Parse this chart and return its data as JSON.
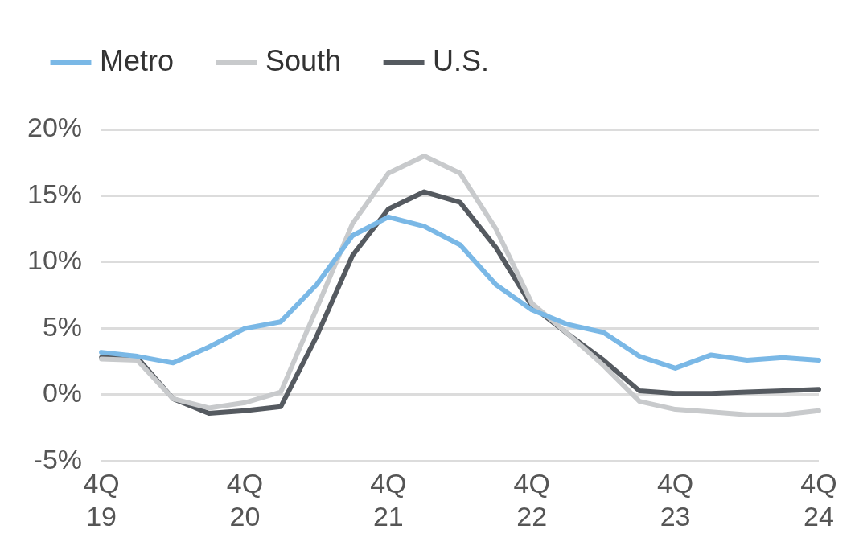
{
  "chart_data": {
    "type": "line",
    "categories": [
      "4Q\n19",
      null,
      null,
      null,
      "4Q\n20",
      null,
      null,
      null,
      "4Q\n21",
      null,
      null,
      null,
      "4Q\n22",
      null,
      null,
      null,
      "4Q\n23",
      null,
      null,
      null,
      "4Q\n24"
    ],
    "series": [
      {
        "name": "Metro",
        "color": "#7ab8e6",
        "values": [
          3.2,
          2.9,
          2.4,
          3.6,
          5.0,
          5.5,
          8.3,
          12.0,
          13.4,
          12.7,
          11.3,
          8.3,
          6.4,
          5.3,
          4.7,
          2.9,
          2.0,
          3.0,
          2.6,
          2.8,
          2.6
        ]
      },
      {
        "name": "South",
        "color": "#c8cacc",
        "values": [
          2.7,
          2.6,
          -0.3,
          -1.0,
          -0.6,
          0.2,
          6.5,
          12.9,
          16.7,
          18.0,
          16.7,
          12.5,
          6.9,
          4.6,
          2.2,
          -0.5,
          -1.1,
          -1.3,
          -1.5,
          -1.5,
          -1.2
        ]
      },
      {
        "name": "U.S.",
        "color": "#555a60",
        "values": [
          2.8,
          2.8,
          -0.3,
          -1.4,
          -1.2,
          -0.9,
          4.4,
          10.5,
          14.0,
          15.3,
          14.5,
          11.1,
          6.7,
          4.6,
          2.6,
          0.3,
          0.1,
          0.1,
          0.2,
          0.3,
          0.4
        ]
      }
    ],
    "ylim": [
      -5,
      20
    ],
    "yticks": [
      {
        "value": -5,
        "label": "-5%"
      },
      {
        "value": 0,
        "label": "0%"
      },
      {
        "value": 5,
        "label": "5%"
      },
      {
        "value": 10,
        "label": "10%"
      },
      {
        "value": 15,
        "label": "15%"
      },
      {
        "value": 20,
        "label": "20%"
      }
    ],
    "grid": "y",
    "legend": "top left",
    "marker": "none",
    "line_style": "solid"
  }
}
